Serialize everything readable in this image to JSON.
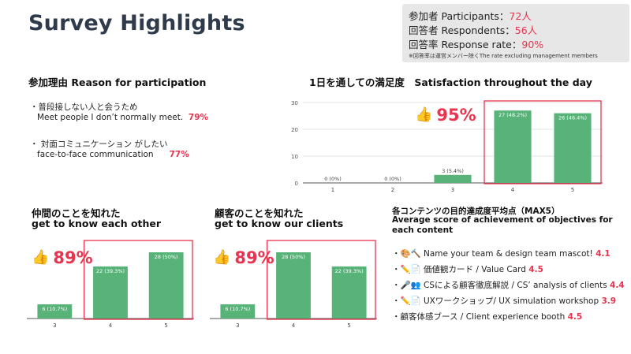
{
  "title": "Survey Highlights",
  "summary": {
    "participants_label": "参加者 Participants：",
    "participants_value": "72人",
    "respondents_label": "回答者 Respondents：",
    "respondents_value": "56人",
    "response_rate_label": "回答率 Response rate：",
    "response_rate_value": "90%",
    "note": "※回答率は運営メンバー除くThe rate excluding management members"
  },
  "reason": {
    "heading": "参加理由 Reason for participation",
    "items": [
      {
        "jp": "・普段接しない人と会うため",
        "en": "Meet people I don’t normally meet.",
        "pct": "79%"
      },
      {
        "jp": "・ 対面コミュニケーション がしたい",
        "en": "face-to-face communication",
        "pct": "77%"
      }
    ]
  },
  "satisfaction": {
    "heading": "1日を通しての満足度　Satisfaction throughout the day",
    "highlight": "95%"
  },
  "peers": {
    "heading_jp": "仲間のことを知れた",
    "heading_en": "get to know each other",
    "highlight": "89%"
  },
  "clients": {
    "heading_jp": "顧客のことを知れた",
    "heading_en": "get to know our clients",
    "highlight": "89%"
  },
  "contents": {
    "heading_jp": "各コンテンツの目的達成度平均点（MAX5）",
    "heading_en": "Average score of achievement of objectives for each content",
    "items": [
      {
        "text": "・🎨🔨 Name your team & design team mascot!",
        "score": "4.1"
      },
      {
        "text": "・✏️📄 価値観カード / Value Card",
        "score": "4.5"
      },
      {
        "text": "・🎤👥 CSによる顧客徹底解説 / CS’ analysis of clients",
        "score": "4.4"
      },
      {
        "text": "・✏️📄 UXワークショップ/ UX simulation workshop",
        "score": "3.9"
      },
      {
        "text": "・顧客体感ブース / Client experience booth",
        "score": "4.5"
      }
    ]
  },
  "icons": {
    "thumbs_up": "thumbs-up-icon"
  },
  "colors": {
    "bar": "#57b378",
    "highlight": "#e8344f",
    "box": "#e8344f"
  },
  "chart_data": [
    {
      "type": "bar",
      "categories": [
        "1",
        "2",
        "3",
        "4",
        "5"
      ],
      "values": [
        0,
        0,
        3,
        27,
        26
      ],
      "labels": [
        "0 (0%)",
        "0 (0%)",
        "3 (5.4%)",
        "27 (48.2%)",
        "26 (46.4%)"
      ],
      "yticks": [
        "0",
        "10",
        "20",
        "30"
      ],
      "ylim": [
        0,
        30
      ],
      "highlight_categories": [
        "4",
        "5"
      ],
      "grid": true
    },
    {
      "type": "bar",
      "categories": [
        "3",
        "4",
        "5"
      ],
      "values": [
        6,
        22,
        28
      ],
      "labels": [
        "6 (10.7%)",
        "22 (39.3%)",
        "28 (50%)"
      ],
      "ylim": [
        0,
        30
      ],
      "highlight_categories": [
        "4",
        "5"
      ],
      "grid": false
    },
    {
      "type": "bar",
      "categories": [
        "3",
        "4",
        "5"
      ],
      "values": [
        6,
        28,
        22
      ],
      "labels": [
        "6 (10.7%)",
        "28 (50%)",
        "22 (39.3%)"
      ],
      "ylim": [
        0,
        30
      ],
      "highlight_categories": [
        "4",
        "5"
      ],
      "grid": false
    }
  ]
}
